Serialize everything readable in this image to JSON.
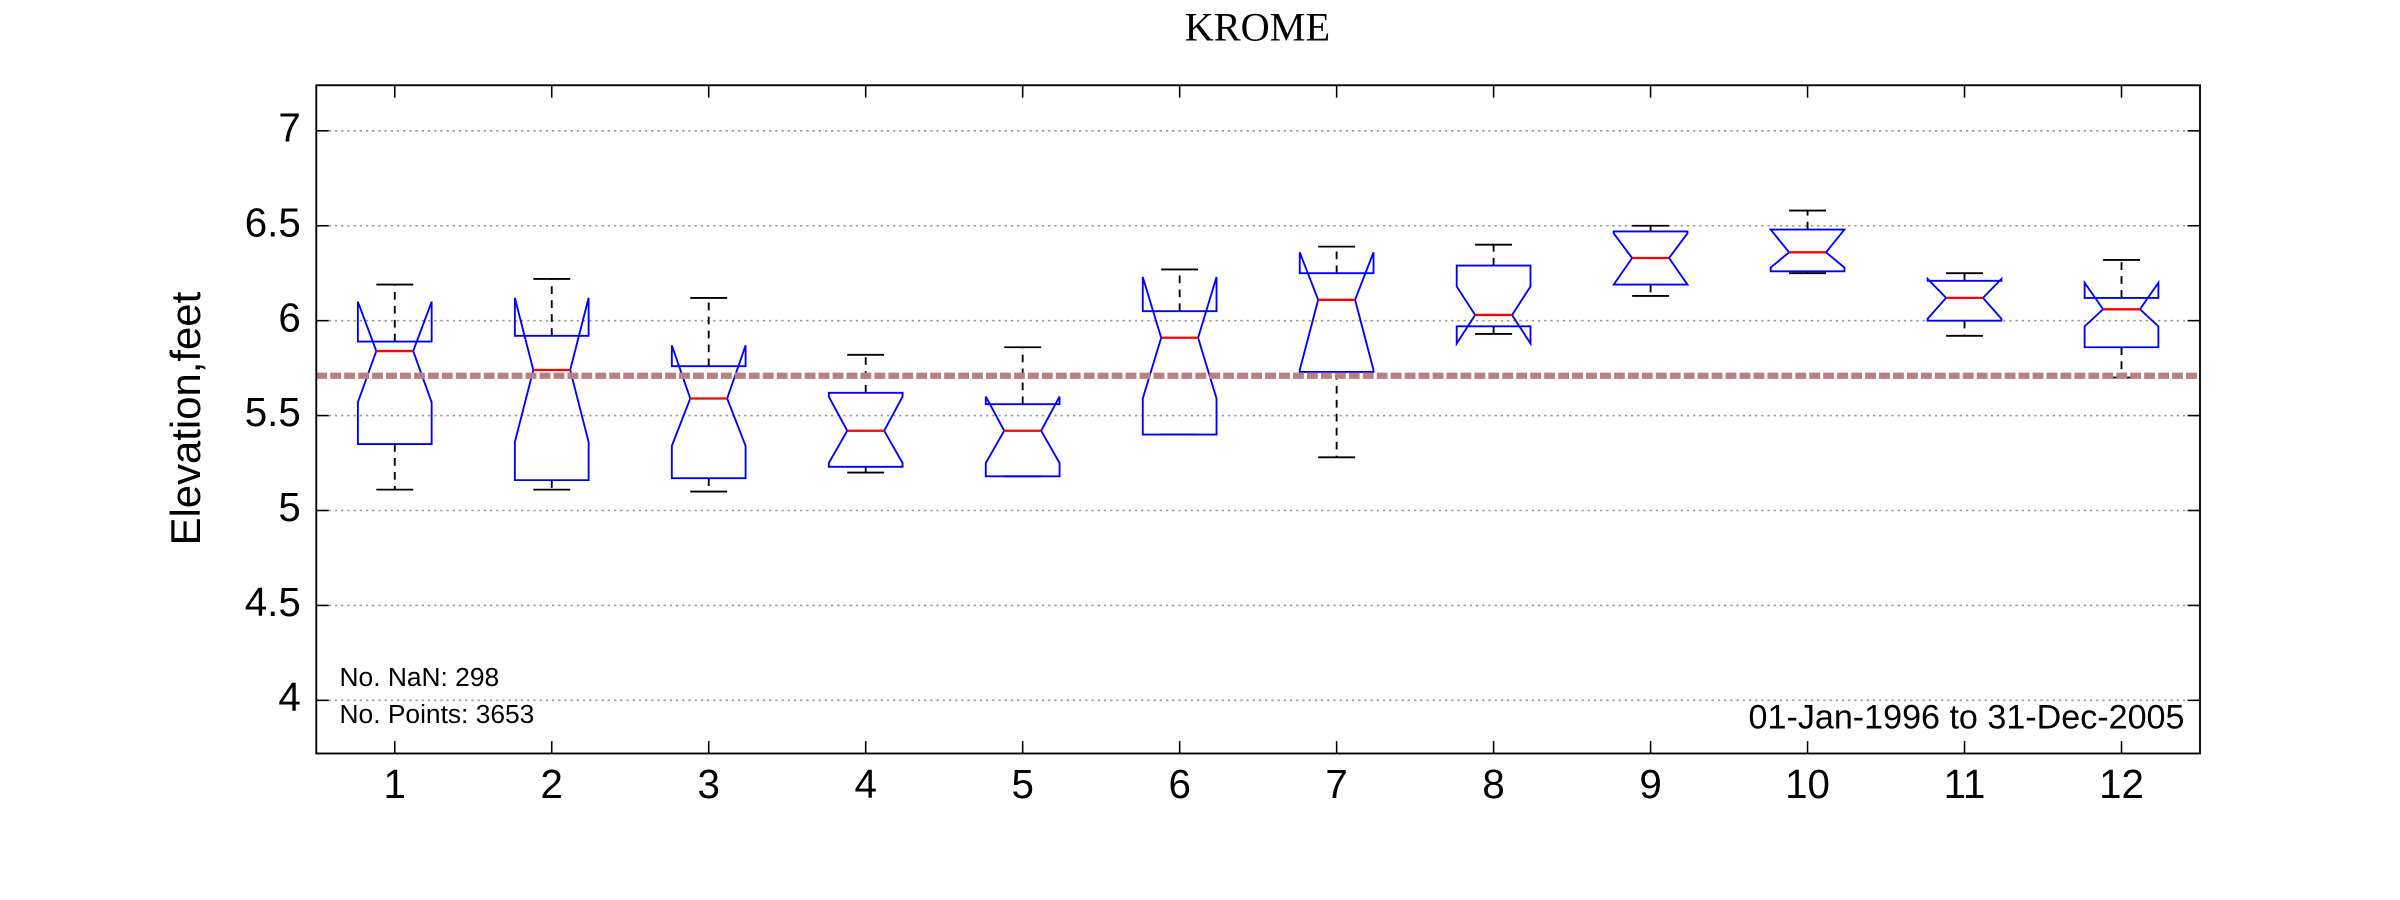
{
  "chart_data": {
    "type": "box",
    "title": "KROME",
    "y_label": "Elevation,feet",
    "categories": [
      "1",
      "2",
      "3",
      "4",
      "5",
      "6",
      "7",
      "8",
      "9",
      "10",
      "11",
      "12"
    ],
    "whisker_low": [
      5.11,
      5.11,
      5.1,
      5.2,
      5.18,
      5.4,
      5.28,
      5.93,
      6.13,
      6.25,
      5.92,
      5.7
    ],
    "q1": [
      5.35,
      5.16,
      5.17,
      5.23,
      5.18,
      5.4,
      5.73,
      5.97,
      6.19,
      6.26,
      6.0,
      5.86
    ],
    "median": [
      5.84,
      5.74,
      5.59,
      5.42,
      5.42,
      5.91,
      6.11,
      6.03,
      6.33,
      6.36,
      6.12,
      6.06
    ],
    "q3": [
      5.89,
      5.92,
      5.76,
      5.62,
      5.56,
      6.05,
      6.25,
      6.29,
      6.47,
      6.48,
      6.21,
      6.12
    ],
    "whisker_high": [
      6.19,
      6.22,
      6.12,
      5.82,
      5.86,
      6.27,
      6.39,
      6.4,
      6.5,
      6.58,
      6.25,
      6.32
    ],
    "notch_low": [
      5.57,
      5.36,
      5.34,
      5.25,
      5.25,
      5.59,
      5.74,
      5.88,
      6.19,
      6.28,
      6.01,
      5.97
    ],
    "notch_high": [
      6.1,
      6.12,
      5.87,
      5.6,
      5.6,
      6.23,
      6.36,
      6.18,
      6.46,
      6.48,
      6.22,
      6.2
    ],
    "box_color": "#0000ff",
    "median_color": "#ff0000",
    "whisker_color": "#000000",
    "reference_line": 5.71,
    "reference_color": "#b88080",
    "ylim": [
      3.72,
      7.24
    ],
    "yticks": [
      4,
      4.5,
      5,
      5.5,
      6,
      6.5,
      7
    ],
    "grid": true,
    "annotations": [
      "No. NaN: 298",
      "No. Points: 3653",
      "01-Jan-1996 to 31-Dec-2005"
    ]
  }
}
